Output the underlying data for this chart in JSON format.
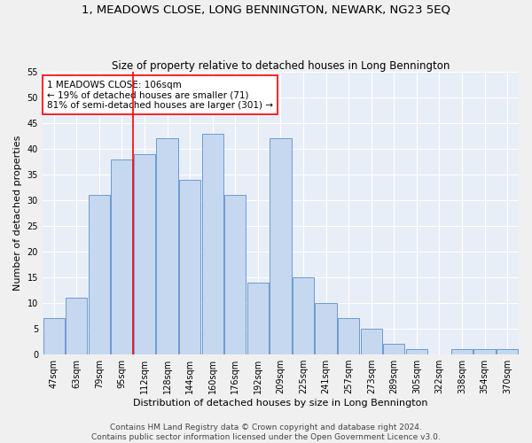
{
  "title": "1, MEADOWS CLOSE, LONG BENNINGTON, NEWARK, NG23 5EQ",
  "subtitle": "Size of property relative to detached houses in Long Bennington",
  "xlabel": "Distribution of detached houses by size in Long Bennington",
  "ylabel": "Number of detached properties",
  "bar_color": "#c5d8f0",
  "bar_edge_color": "#5b8fc9",
  "background_color": "#e8eef8",
  "grid_color": "#ffffff",
  "categories": [
    "47sqm",
    "63sqm",
    "79sqm",
    "95sqm",
    "112sqm",
    "128sqm",
    "144sqm",
    "160sqm",
    "176sqm",
    "192sqm",
    "209sqm",
    "225sqm",
    "241sqm",
    "257sqm",
    "273sqm",
    "289sqm",
    "305sqm",
    "322sqm",
    "338sqm",
    "354sqm",
    "370sqm"
  ],
  "values": [
    7,
    11,
    31,
    38,
    39,
    42,
    34,
    43,
    31,
    14,
    42,
    15,
    10,
    7,
    5,
    2,
    1,
    0,
    1,
    1,
    1
  ],
  "ylim": [
    0,
    55
  ],
  "yticks": [
    0,
    5,
    10,
    15,
    20,
    25,
    30,
    35,
    40,
    45,
    50,
    55
  ],
  "property_label": "1 MEADOWS CLOSE: 106sqm",
  "annotation_line1": "← 19% of detached houses are smaller (71)",
  "annotation_line2": "81% of semi-detached houses are larger (301) →",
  "vline_position": 3.5,
  "footer_line1": "Contains HM Land Registry data © Crown copyright and database right 2024.",
  "footer_line2": "Contains public sector information licensed under the Open Government Licence v3.0.",
  "title_fontsize": 9.5,
  "subtitle_fontsize": 8.5,
  "axis_label_fontsize": 8,
  "tick_fontsize": 7,
  "annotation_fontsize": 7.5,
  "footer_fontsize": 6.5
}
